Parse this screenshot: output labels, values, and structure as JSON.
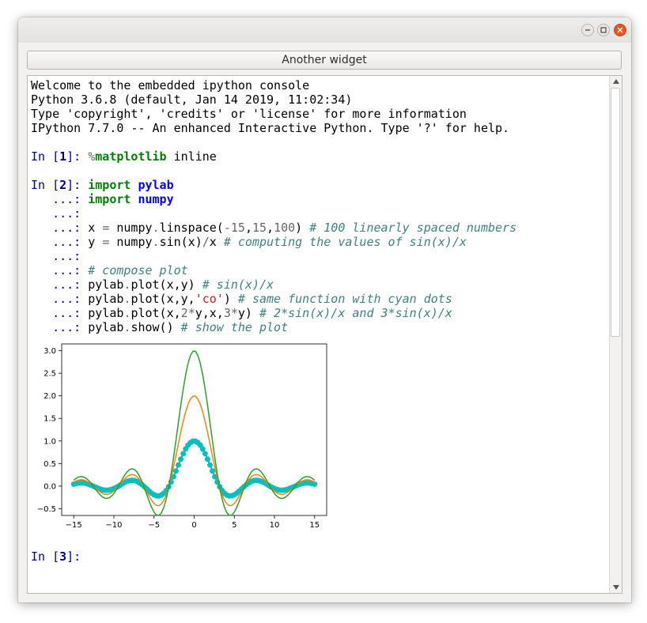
{
  "window": {
    "buttons": {
      "minimize": "minimize-icon",
      "maximize": "maximize-icon",
      "close": "close-icon"
    },
    "accent_close": "#e95420"
  },
  "widget_button": {
    "label": "Another widget"
  },
  "console": {
    "banner": [
      "Welcome to the embedded ipython console",
      "Python 3.6.8 (default, Jan 14 2019, 11:02:34)",
      "Type 'copyright', 'credits' or 'license' for more information",
      "IPython 7.7.0 -- An enhanced Interactive Python. Type '?' for help."
    ],
    "prompts": {
      "in_prefix": "In [",
      "in_suffix": "]: ",
      "cont": "   ...: ",
      "n1": "1",
      "n2": "2",
      "n3": "3"
    },
    "cell1": {
      "magic": "%",
      "magic_name": "matplotlib",
      "rest": " inline"
    },
    "cell2": {
      "l1": {
        "kw": "import",
        "mod": "pylab"
      },
      "l2": {
        "kw": "import",
        "mod": "numpy"
      },
      "l4": {
        "a": "x ",
        "eq": "=",
        "b": " numpy",
        "dot": ".",
        "c": "linspace(",
        "n1": "-15",
        "c2": ",",
        "n2": "15",
        "c3": ",",
        "n3": "100",
        "c4": ") ",
        "cm": "# 100 linearly spaced numbers"
      },
      "l5": {
        "a": "y ",
        "eq": "=",
        "b": " numpy",
        "dot": ".",
        "c": "sin(x)",
        "slash": "/",
        "d": "x ",
        "cm": "# computing the values of sin(x)/x"
      },
      "l7": {
        "cm": "# compose plot"
      },
      "l8": {
        "a": "pylab",
        "dot": ".",
        "b": "plot(x,y) ",
        "cm": "# sin(x)/x"
      },
      "l9": {
        "a": "pylab",
        "dot": ".",
        "b": "plot(x,y,",
        "str": "'co'",
        "c": ") ",
        "cm": "# same function with cyan dots"
      },
      "l10": {
        "a": "pylab",
        "dot": ".",
        "b": "plot(x,",
        "n1": "2",
        "star1": "*",
        "c": "y,x,",
        "n2": "3",
        "star2": "*",
        "d": "y) ",
        "cm": "# 2*sin(x)/x and 3*sin(x)/x"
      },
      "l11": {
        "a": "pylab",
        "dot": ".",
        "b": "show() ",
        "cm": "# show the plot"
      }
    }
  },
  "chart_data": {
    "type": "line",
    "title": "",
    "xlabel": "",
    "ylabel": "",
    "xlim": [
      -16.5,
      16.5
    ],
    "ylim": [
      -0.65,
      3.15
    ],
    "x_ticks": [
      -15,
      -10,
      -5,
      0,
      5,
      10,
      15
    ],
    "x_tick_labels": [
      "−15",
      "−10",
      "−5",
      "0",
      "5",
      "10",
      "15"
    ],
    "y_ticks": [
      -0.5,
      0.0,
      0.5,
      1.0,
      1.5,
      2.0,
      2.5,
      3.0
    ],
    "y_tick_labels": [
      "−0.5",
      "0.0",
      "0.5",
      "1.0",
      "1.5",
      "2.0",
      "2.5",
      "3.0"
    ],
    "grid": false,
    "x": {
      "start": -15,
      "stop": 15,
      "num": 100
    },
    "series": [
      {
        "function": "sin(x)/x",
        "scale": 1,
        "style": "line",
        "color": "#1f77b4"
      },
      {
        "function": "sin(x)/x",
        "scale": 1,
        "style": "circles",
        "color": "#00bfbf"
      },
      {
        "function": "sin(x)/x",
        "scale": 2,
        "style": "line",
        "color": "#ff7f0e"
      },
      {
        "function": "sin(x)/x",
        "scale": 3,
        "style": "line",
        "color": "#2ca02c"
      }
    ]
  }
}
